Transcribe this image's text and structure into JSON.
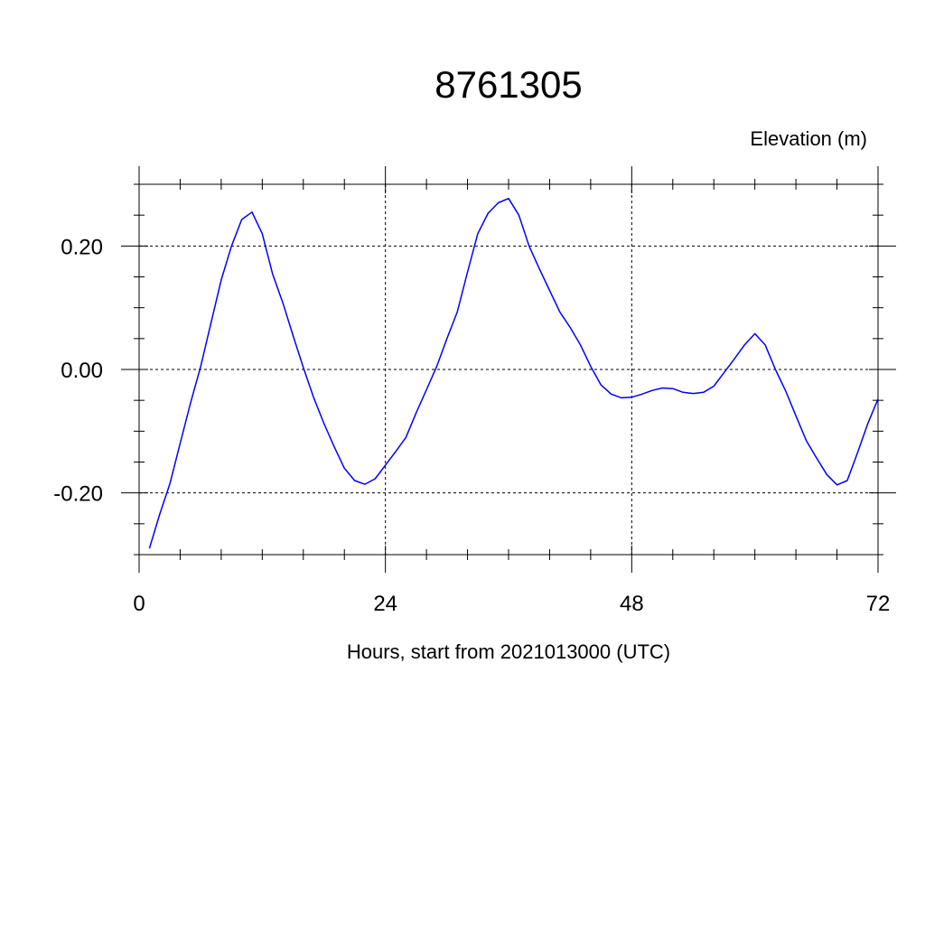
{
  "chart_data": {
    "type": "line",
    "title": "8761305",
    "ylabel": "Elevation (m)",
    "xlabel": "Hours, start from 2021013000 (UTC)",
    "xlim": [
      0,
      72
    ],
    "ylim": [
      -0.3,
      0.3
    ],
    "x_ticks": [
      0,
      24,
      48,
      72
    ],
    "x_tick_labels": [
      "0",
      "24",
      "48",
      "72"
    ],
    "y_ticks": [
      -0.2,
      0.0,
      0.2
    ],
    "y_tick_labels": [
      "-0.20",
      "0.00",
      "0.20"
    ],
    "grid": true,
    "colors": {
      "line": "#0000ff",
      "axes": "#000000",
      "grid": "#000000"
    },
    "series": [
      {
        "x": [
          1,
          2,
          3,
          4,
          5,
          6,
          7,
          8,
          9,
          10,
          11,
          12,
          13,
          14,
          15,
          16,
          17,
          18,
          19,
          20,
          21,
          22,
          23,
          24,
          25,
          26,
          27,
          28,
          29,
          30,
          31,
          32,
          33,
          34,
          35,
          36,
          37,
          38,
          39,
          40,
          41,
          42,
          43,
          44,
          45,
          46,
          47,
          48,
          49,
          50,
          51,
          52,
          53,
          54,
          55,
          56,
          57,
          58,
          59,
          60,
          61,
          62,
          63,
          64,
          65,
          66,
          67,
          68,
          69,
          70,
          71,
          72
        ],
        "values": [
          -0.29,
          -0.235,
          -0.185,
          -0.12,
          -0.055,
          0.005,
          0.075,
          0.145,
          0.2,
          0.243,
          0.255,
          0.22,
          0.155,
          0.108,
          0.055,
          0.003,
          -0.045,
          -0.087,
          -0.125,
          -0.16,
          -0.18,
          -0.186,
          -0.177,
          -0.155,
          -0.133,
          -0.11,
          -0.07,
          -0.033,
          0.005,
          0.05,
          0.093,
          0.158,
          0.22,
          0.253,
          0.27,
          0.277,
          0.25,
          0.2,
          0.163,
          0.128,
          0.093,
          0.068,
          0.04,
          0.005,
          -0.025,
          -0.04,
          -0.046,
          -0.045,
          -0.04,
          -0.034,
          -0.03,
          -0.031,
          -0.037,
          -0.039,
          -0.037,
          -0.027,
          -0.005,
          0.017,
          0.04,
          0.058,
          0.04,
          0.0,
          -0.035,
          -0.075,
          -0.115,
          -0.143,
          -0.17,
          -0.187,
          -0.18,
          -0.135,
          -0.088,
          -0.048
        ]
      }
    ]
  }
}
